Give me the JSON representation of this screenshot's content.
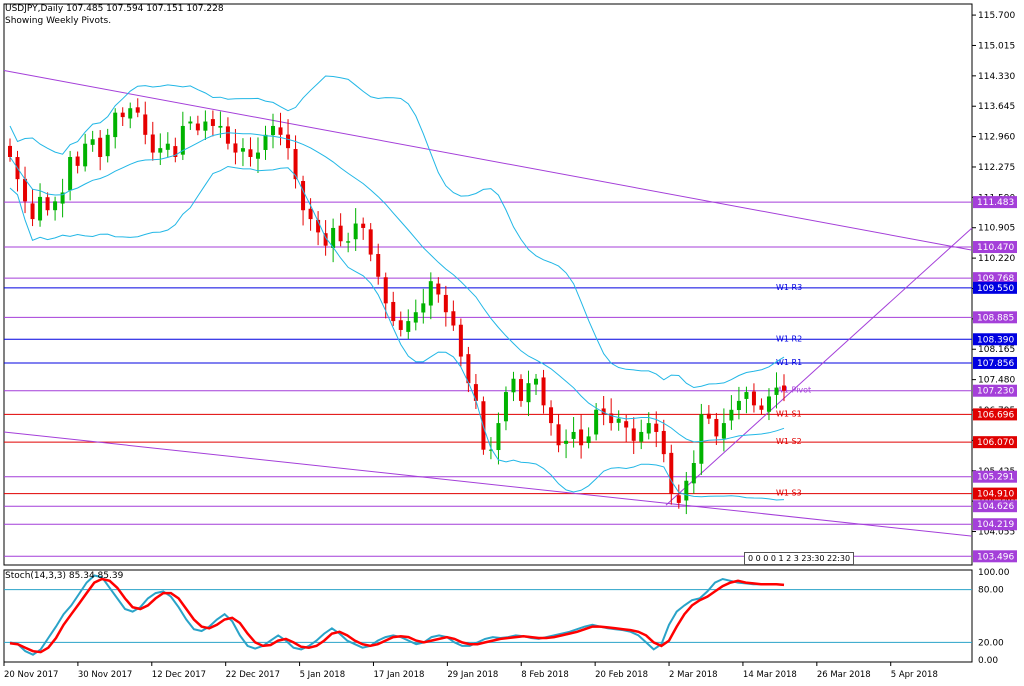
{
  "header": {
    "title": "USDJPY,Daily  107.485 107.594 107.151 107.228",
    "subtitle": "Showing Weekly Pivots."
  },
  "stoch": {
    "label": "Stoch(14,3,3) 85.34 85.39",
    "ticks": [
      "100.00",
      "80.00",
      "20.00",
      "0.00"
    ]
  },
  "time_box": "0 0 0 0 1 2 3  23:30  22:30",
  "colors": {
    "bull": "#00b200",
    "bear": "#e60000",
    "band": "#22b7e6",
    "trend": "#a43fd9",
    "pivot_blue": "#0000e0",
    "pivot_red": "#e00000",
    "stoch_main": "#2aa3c8",
    "stoch_signal": "#ff0000",
    "arrow": "#55e07a"
  },
  "chart_data": {
    "type": "candlestick",
    "price_axis": [
      "115.700",
      "115.015",
      "114.330",
      "113.645",
      "112.960",
      "112.275",
      "111.590",
      "110.905",
      "110.220",
      "109.535",
      "108.850",
      "108.165",
      "107.480",
      "106.795",
      "106.110",
      "105.425",
      "104.740",
      "104.055"
    ],
    "x_ticks": [
      "20 Nov 2017",
      "30 Nov 2017",
      "12 Dec 2017",
      "22 Dec 2017",
      "5 Jan 2018",
      "17 Jan 2018",
      "29 Jan 2018",
      "8 Feb 2018",
      "20 Feb 2018",
      "2 Mar 2018",
      "14 Mar 2018",
      "26 Mar 2018",
      "5 Apr 2018"
    ],
    "ylim": [
      103.3,
      115.95
    ],
    "levels": [
      {
        "value": 111.483,
        "label": "111.483",
        "style": "purple",
        "name": ""
      },
      {
        "value": 110.47,
        "label": "110.470",
        "style": "purple",
        "name": ""
      },
      {
        "value": 109.768,
        "label": "109.768",
        "style": "purple",
        "name": ""
      },
      {
        "value": 109.55,
        "label": "109.550",
        "style": "blue",
        "name": "W1 R3"
      },
      {
        "value": 108.885,
        "label": "108.885",
        "style": "purple",
        "name": ""
      },
      {
        "value": 108.39,
        "label": "108.390",
        "style": "blue",
        "name": "W1 R2"
      },
      {
        "value": 107.856,
        "label": "107.856",
        "style": "blue",
        "name": "W1 R1"
      },
      {
        "value": 107.23,
        "label": "107.230",
        "style": "purple",
        "name": "W1 Pivot"
      },
      {
        "value": 106.696,
        "label": "106.696",
        "style": "red",
        "name": "W1 S1"
      },
      {
        "value": 106.07,
        "label": "106.070",
        "style": "red",
        "name": "W1 S2"
      },
      {
        "value": 105.291,
        "label": "105.291",
        "style": "purple",
        "name": ""
      },
      {
        "value": 104.91,
        "label": "104.910",
        "style": "red",
        "name": "W1 S3"
      },
      {
        "value": 104.626,
        "label": "104.626",
        "style": "purple",
        "name": ""
      },
      {
        "value": 104.219,
        "label": "104.219",
        "style": "purple",
        "name": ""
      },
      {
        "value": 103.496,
        "label": "103.496",
        "style": "purple",
        "name": ""
      }
    ],
    "closes": [
      112.5,
      112.0,
      111.5,
      111.1,
      111.6,
      111.3,
      111.5,
      111.7,
      112.5,
      112.3,
      112.8,
      112.9,
      112.5,
      113.0,
      113.5,
      113.4,
      113.6,
      113.5,
      113.0,
      112.6,
      112.7,
      112.8,
      112.5,
      113.2,
      113.3,
      113.1,
      113.3,
      113.2,
      113.2,
      112.8,
      112.6,
      112.7,
      112.5,
      112.6,
      113.0,
      113.2,
      113.0,
      112.7,
      112.0,
      111.3,
      111.1,
      110.8,
      110.5,
      110.9,
      110.6,
      110.6,
      111.0,
      110.9,
      110.3,
      109.8,
      109.2,
      108.8,
      108.6,
      108.8,
      109.0,
      109.2,
      109.7,
      109.4,
      109.0,
      108.7,
      108.0,
      107.4,
      107.0,
      105.9,
      105.9,
      106.5,
      107.2,
      107.5,
      107.0,
      107.4,
      107.5,
      106.9,
      106.5,
      106.0,
      106.1,
      106.3,
      106.0,
      106.2,
      106.8,
      106.7,
      106.5,
      106.6,
      106.4,
      106.1,
      106.3,
      106.5,
      106.3,
      105.8,
      104.9,
      104.7,
      105.2,
      105.6,
      106.7,
      106.6,
      106.2,
      106.5,
      106.8,
      107.0,
      107.2,
      106.9,
      106.8,
      107.1,
      107.3,
      107.23
    ],
    "stochastic": {
      "levels": [
        80,
        20
      ],
      "main": [
        20,
        18,
        10,
        6,
        12,
        25,
        38,
        52,
        62,
        75,
        88,
        96,
        94,
        82,
        70,
        58,
        55,
        60,
        70,
        76,
        78,
        72,
        60,
        46,
        35,
        33,
        38,
        46,
        52,
        44,
        28,
        16,
        13,
        16,
        22,
        28,
        22,
        14,
        12,
        16,
        22,
        30,
        36,
        30,
        22,
        18,
        14,
        16,
        22,
        26,
        28,
        26,
        22,
        18,
        20,
        26,
        28,
        26,
        20,
        16,
        16,
        20,
        24,
        26,
        25,
        26,
        28,
        27,
        25,
        24,
        26,
        28,
        30,
        32,
        35,
        38,
        40,
        38,
        36,
        35,
        34,
        32,
        28,
        20,
        12,
        18,
        40,
        55,
        62,
        68,
        70,
        78,
        88,
        92,
        90,
        88,
        87,
        86,
        86,
        86,
        86,
        85.34
      ],
      "signal": [
        19,
        18,
        14,
        10,
        9,
        14,
        25,
        40,
        52,
        64,
        76,
        88,
        92,
        90,
        82,
        70,
        60,
        58,
        62,
        70,
        76,
        76,
        70,
        58,
        46,
        38,
        36,
        40,
        46,
        48,
        42,
        30,
        20,
        16,
        17,
        22,
        24,
        20,
        15,
        14,
        16,
        22,
        30,
        32,
        28,
        22,
        18,
        16,
        18,
        22,
        26,
        27,
        26,
        22,
        20,
        22,
        24,
        26,
        24,
        20,
        18,
        18,
        20,
        22,
        24,
        25,
        26,
        27,
        26,
        25,
        25,
        26,
        28,
        30,
        32,
        35,
        38,
        38,
        37,
        36,
        35,
        34,
        32,
        28,
        20,
        16,
        22,
        38,
        52,
        62,
        68,
        72,
        78,
        84,
        88,
        90,
        88,
        87,
        86,
        86,
        86,
        85.39
      ]
    }
  }
}
